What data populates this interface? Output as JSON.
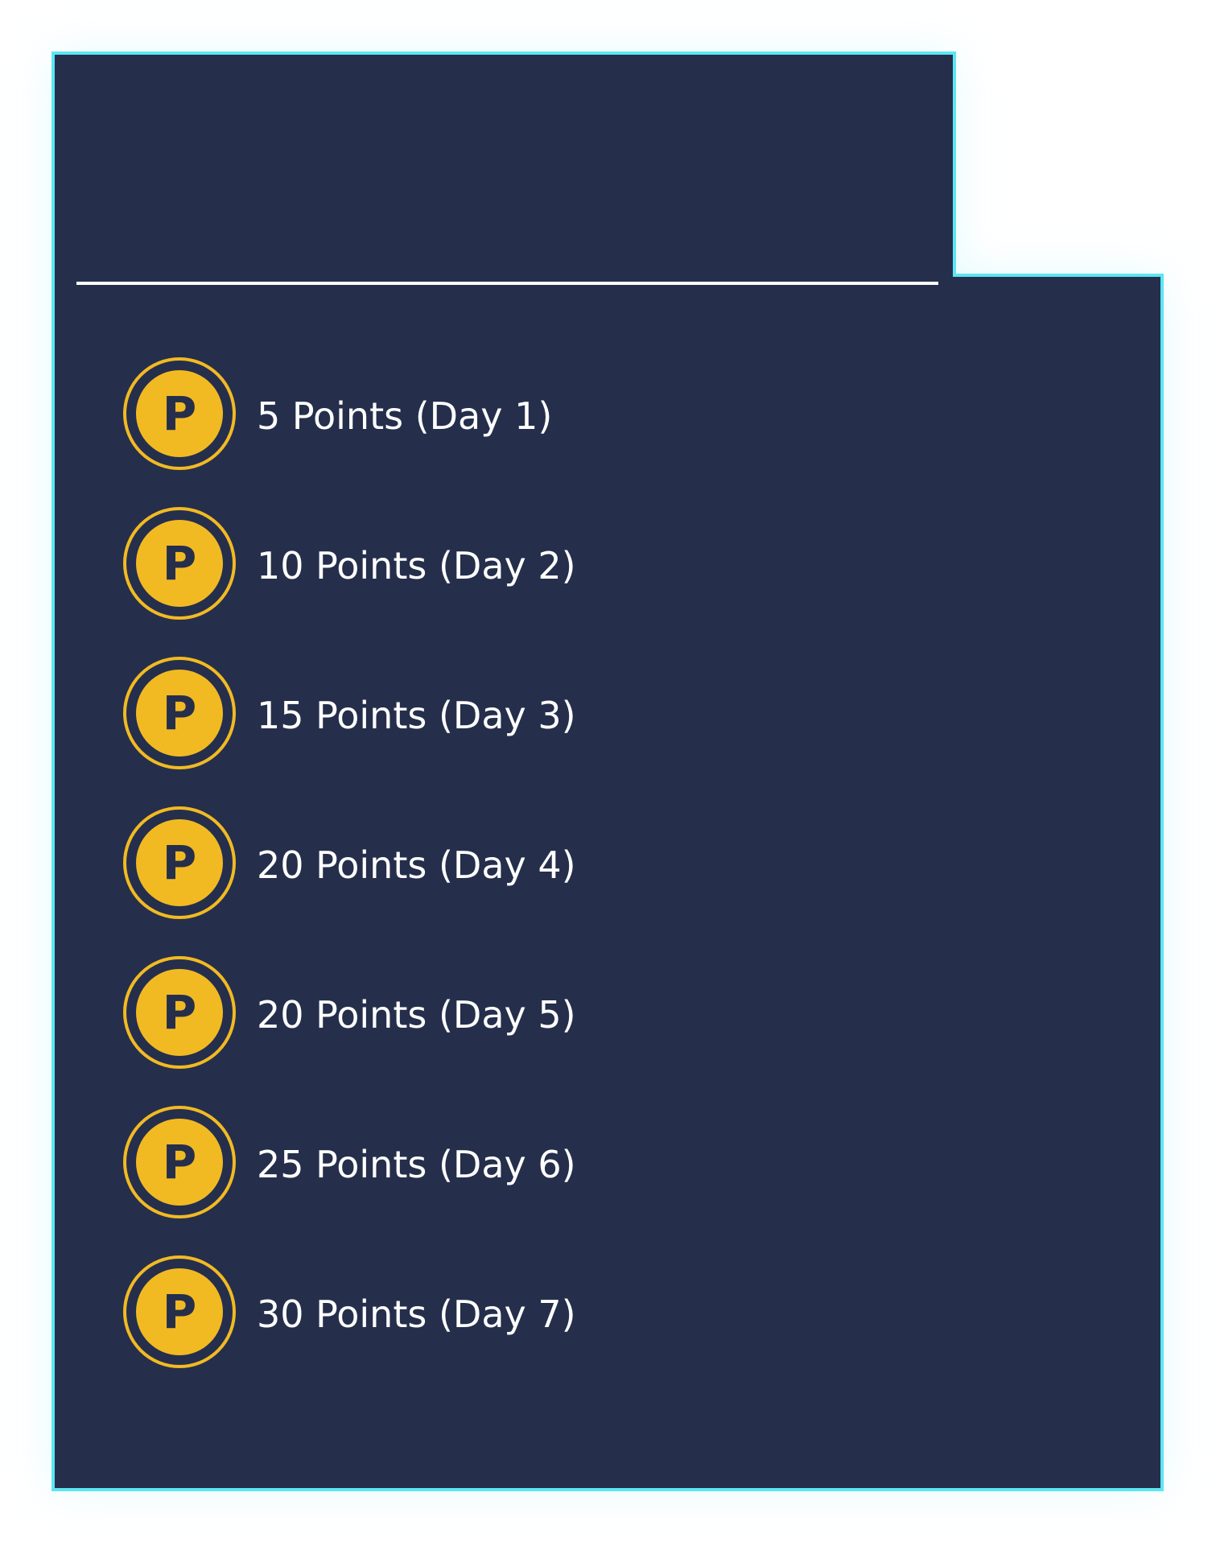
{
  "colors": {
    "panel_background": "#252F4C",
    "panel_border": "#5CE6F2",
    "coin_gold": "#F2BA22",
    "text": "#FFFFFF",
    "glow": "#CFF7FB"
  },
  "rewards": [
    {
      "icon": "points-coin-icon",
      "coin_letter": "P",
      "label": "5 Points (Day 1)"
    },
    {
      "icon": "points-coin-icon",
      "coin_letter": "P",
      "label": "10 Points (Day 2)"
    },
    {
      "icon": "points-coin-icon",
      "coin_letter": "P",
      "label": "15 Points (Day 3)"
    },
    {
      "icon": "points-coin-icon",
      "coin_letter": "P",
      "label": "20 Points (Day 4)"
    },
    {
      "icon": "points-coin-icon",
      "coin_letter": "P",
      "label": "20 Points (Day 5)"
    },
    {
      "icon": "points-coin-icon",
      "coin_letter": "P",
      "label": "25 Points (Day 6)"
    },
    {
      "icon": "points-coin-icon",
      "coin_letter": "P",
      "label": "30 Points (Day 7)"
    }
  ]
}
